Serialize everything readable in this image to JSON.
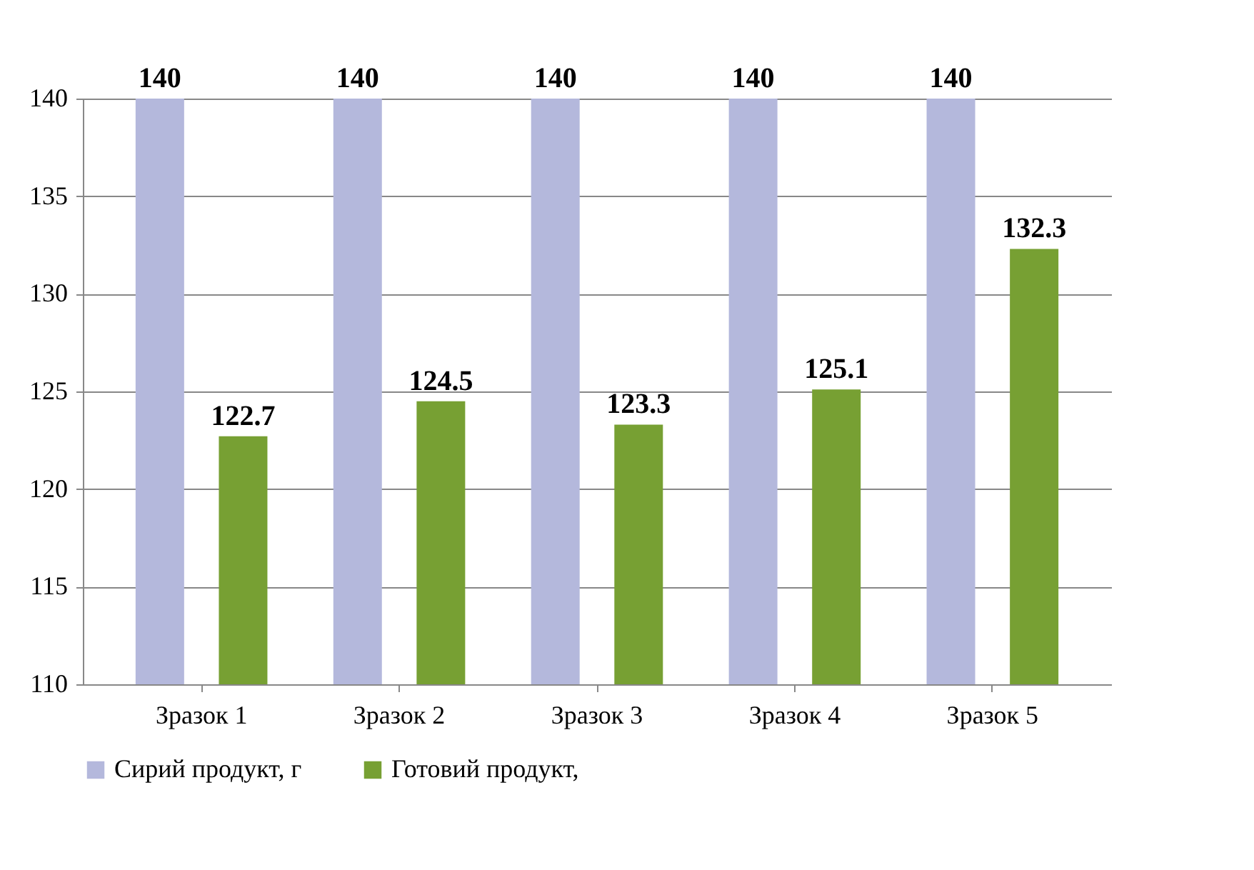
{
  "chart_data": {
    "type": "bar",
    "categories": [
      "Зразок 1",
      "Зразок 2",
      "Зразок 3",
      "Зразок 4",
      "Зразок 5"
    ],
    "series": [
      {
        "name": "Сирий продукт, г",
        "color": "#b4b8dc",
        "values": [
          140,
          140,
          140,
          140,
          140
        ]
      },
      {
        "name": "Готовий продукт,",
        "color": "#77a033",
        "values": [
          122.7,
          124.5,
          123.3,
          125.1,
          132.3
        ]
      }
    ],
    "ylim": [
      110,
      140
    ],
    "yticks": [
      110,
      115,
      120,
      125,
      130,
      135,
      140
    ],
    "grid": "y",
    "legend": "bottom",
    "data_labels": true
  }
}
